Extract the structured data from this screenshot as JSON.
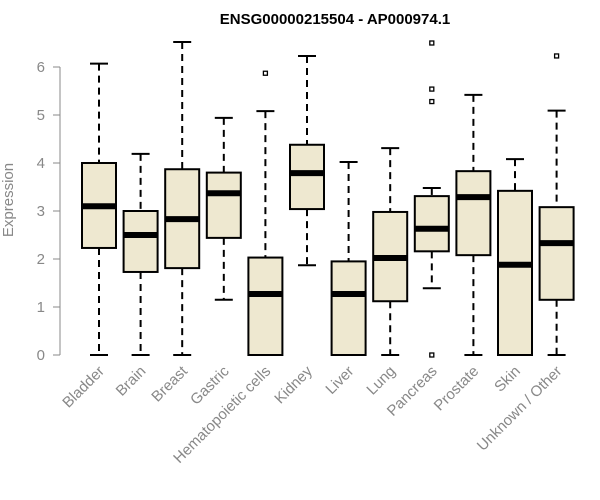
{
  "chart_data": {
    "type": "box",
    "title": "ENSG00000215504 - AP000974.1",
    "xlabel": "",
    "ylabel": "Expression",
    "ylim": [
      0,
      6.5
    ],
    "yticks": [
      "0",
      "1",
      "2",
      "3",
      "4",
      "5",
      "6"
    ],
    "grid": false,
    "box_color": "#EEE8D0",
    "categories": [
      "Bladder",
      "Brain",
      "Breast",
      "Gastric",
      "Hematopoietic cells",
      "Kidney",
      "Liver",
      "Lung",
      "Pancreas",
      "Prostate",
      "Skin",
      "Unknown / Other"
    ],
    "boxes": [
      {
        "min": 0,
        "q1": 2.23,
        "median": 3.1,
        "q3": 4.0,
        "max": 6.07,
        "outliers": []
      },
      {
        "min": 0,
        "q1": 1.73,
        "median": 2.5,
        "q3": 3.0,
        "max": 4.19,
        "outliers": []
      },
      {
        "min": 0,
        "q1": 1.81,
        "median": 2.83,
        "q3": 3.87,
        "max": 6.52,
        "outliers": []
      },
      {
        "min": 1.15,
        "q1": 2.44,
        "median": 3.37,
        "q3": 3.8,
        "max": 4.94,
        "outliers": []
      },
      {
        "min": 0,
        "q1": 0,
        "median": 1.27,
        "q3": 2.03,
        "max": 5.08,
        "outliers": [
          5.87
        ]
      },
      {
        "min": 1.87,
        "q1": 3.04,
        "median": 3.79,
        "q3": 4.38,
        "max": 6.23,
        "outliers": []
      },
      {
        "min": 0,
        "q1": 0,
        "median": 1.27,
        "q3": 1.95,
        "max": 4.02,
        "outliers": []
      },
      {
        "min": 0,
        "q1": 1.12,
        "median": 2.02,
        "q3": 2.98,
        "max": 4.31,
        "outliers": []
      },
      {
        "min": 1.39,
        "q1": 2.16,
        "median": 2.63,
        "q3": 3.31,
        "max": 3.48,
        "outliers": [
          6.5,
          5.54,
          5.28,
          0
        ]
      },
      {
        "min": 0,
        "q1": 2.08,
        "median": 3.29,
        "q3": 3.83,
        "max": 5.42,
        "outliers": []
      },
      {
        "min": 0,
        "q1": 0,
        "median": 1.88,
        "q3": 3.42,
        "max": 4.08,
        "outliers": []
      },
      {
        "min": 0,
        "q1": 1.15,
        "median": 2.33,
        "q3": 3.08,
        "max": 5.09,
        "outliers": [
          6.23
        ]
      }
    ]
  }
}
